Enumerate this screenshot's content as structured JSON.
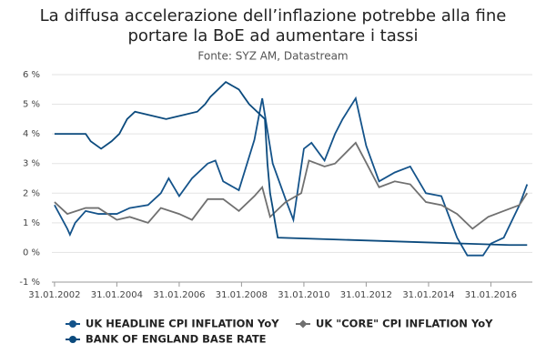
{
  "chart_data": {
    "type": "line",
    "title": [
      "La diffusa accelerazione dell’inflazione potrebbe alla fine",
      "portare la BoE ad aumentare i tassi"
    ],
    "subtitle": "Fonte: SYZ AM, Datastream",
    "xlim": [
      "31.12.2001",
      "31.05.2017"
    ],
    "xticks": [
      "31.01.2002",
      "31.01.2004",
      "31.01.2006",
      "31.01.2008",
      "31.01.2010",
      "31.01.2012",
      "31.01.2014",
      "31.01.2016"
    ],
    "ylim": [
      -1,
      6
    ],
    "yticks": [
      {
        "value": -1,
        "label": "-1 %"
      },
      {
        "value": 0,
        "label": "0 %"
      },
      {
        "value": 1,
        "label": "1 %"
      },
      {
        "value": 2,
        "label": "2 %"
      },
      {
        "value": 3,
        "label": "3 %"
      },
      {
        "value": 4,
        "label": "4 %"
      },
      {
        "value": 5,
        "label": "5 %"
      },
      {
        "value": 6,
        "label": "6 %"
      }
    ],
    "grid": true,
    "legend": "bottom",
    "series": [
      {
        "name": "UK HEADLINE CPI INFLATION YoY",
        "color": "#14538a",
        "marker": "circle",
        "x": [
          "31.01.2002",
          "30.06.2002",
          "31.07.2002",
          "30.09.2002",
          "31.01.2003",
          "30.06.2003",
          "31.01.2004",
          "30.06.2004",
          "31.01.2005",
          "30.06.2005",
          "30.09.2005",
          "31.01.2006",
          "30.06.2006",
          "31.12.2006",
          "31.03.2007",
          "30.06.2007",
          "31.12.2007",
          "30.06.2008",
          "30.09.2008",
          "31.01.2009",
          "30.06.2009",
          "30.09.2009",
          "31.01.2010",
          "30.04.2010",
          "30.09.2010",
          "31.01.2011",
          "30.04.2011",
          "30.09.2011",
          "31.01.2012",
          "30.06.2012",
          "31.12.2012",
          "30.06.2013",
          "31.12.2013",
          "30.06.2014",
          "31.12.2014",
          "30.04.2015",
          "31.10.2015",
          "31.01.2016",
          "30.06.2016",
          "31.12.2016",
          "31.03.2017"
        ],
        "values": [
          1.6,
          0.8,
          0.6,
          1.0,
          1.4,
          1.3,
          1.3,
          1.5,
          1.6,
          2.0,
          2.5,
          1.9,
          2.5,
          3.0,
          3.1,
          2.4,
          2.1,
          3.8,
          5.2,
          3.0,
          1.8,
          1.1,
          3.5,
          3.7,
          3.1,
          4.0,
          4.5,
          5.2,
          3.6,
          2.4,
          2.7,
          2.9,
          2.0,
          1.9,
          0.5,
          -0.1,
          -0.1,
          0.3,
          0.5,
          1.6,
          2.3
        ]
      },
      {
        "name": "UK \"CORE\" CPI INFLATION YoY",
        "color": "#707070",
        "marker": "diamond",
        "x": [
          "31.01.2002",
          "30.06.2002",
          "31.01.2003",
          "30.06.2003",
          "31.01.2004",
          "30.06.2004",
          "31.01.2005",
          "30.06.2005",
          "31.01.2006",
          "30.06.2006",
          "31.12.2006",
          "30.06.2007",
          "31.12.2007",
          "30.06.2008",
          "30.09.2008",
          "31.12.2008",
          "30.06.2009",
          "31.12.2009",
          "31.03.2010",
          "30.09.2010",
          "31.01.2011",
          "30.09.2011",
          "31.12.2011",
          "30.06.2012",
          "31.12.2012",
          "30.06.2013",
          "31.12.2013",
          "30.06.2014",
          "31.12.2014",
          "30.06.2015",
          "31.12.2015",
          "30.06.2016",
          "31.12.2016",
          "31.03.2017"
        ],
        "values": [
          1.7,
          1.3,
          1.5,
          1.5,
          1.1,
          1.2,
          1.0,
          1.5,
          1.3,
          1.1,
          1.8,
          1.8,
          1.4,
          1.9,
          2.2,
          1.2,
          1.7,
          2.0,
          3.1,
          2.9,
          3.0,
          3.7,
          3.2,
          2.2,
          2.4,
          2.3,
          1.7,
          1.6,
          1.3,
          0.8,
          1.2,
          1.4,
          1.6,
          2.0
        ]
      },
      {
        "name": "BANK OF ENGLAND BASE RATE",
        "color": "#0b4a7d",
        "marker": "circle",
        "x": [
          "31.01.2002",
          "31.01.2003",
          "31.03.2003",
          "31.07.2003",
          "30.11.2003",
          "29.02.2004",
          "31.05.2004",
          "31.08.2004",
          "31.08.2005",
          "31.08.2006",
          "30.11.2006",
          "31.01.2007",
          "31.07.2007",
          "31.12.2007",
          "29.02.2008",
          "30.04.2008",
          "31.10.2008",
          "30.11.2008",
          "31.12.2008",
          "31.01.2009",
          "28.02.2009",
          "31.03.2009",
          "31.08.2016",
          "31.03.2017"
        ],
        "values": [
          4.0,
          4.0,
          3.75,
          3.5,
          3.75,
          4.0,
          4.5,
          4.75,
          4.5,
          4.75,
          5.0,
          5.25,
          5.75,
          5.5,
          5.25,
          5.0,
          4.5,
          3.0,
          2.0,
          1.5,
          1.0,
          0.5,
          0.25,
          0.25
        ]
      }
    ]
  }
}
